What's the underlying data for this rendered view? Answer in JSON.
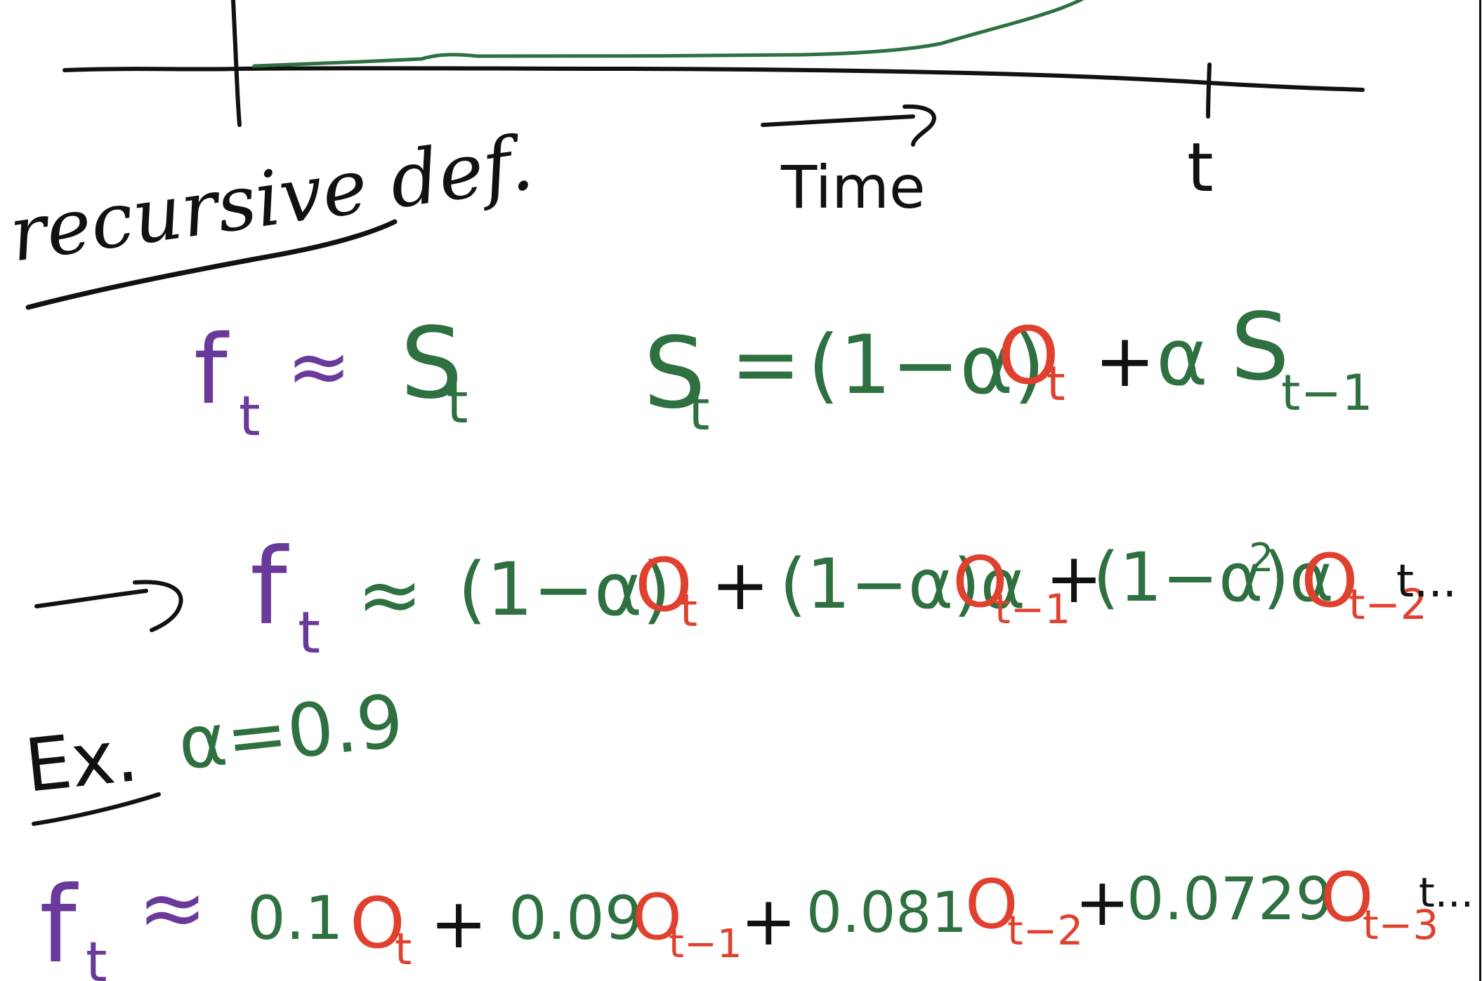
{
  "colors": {
    "black": "#111111",
    "green": "#2e7040",
    "purple": "#6a3a9a",
    "red": "#e0402e"
  },
  "graph": {
    "time_label": "Time",
    "t_label": "t"
  },
  "heading": {
    "text": "recursive def."
  },
  "line1": {
    "f": "f",
    "f_sub": "t",
    "approx": "≈",
    "s": "S",
    "s_sub": "t",
    "rhs_s": "S",
    "rhs_s_sub": "t",
    "eq": "=",
    "one_minus_alpha": "(1−α)",
    "o": "O",
    "o_sub": "t",
    "plus": "+",
    "alpha": "α",
    "s_prev": "S",
    "s_prev_sub": "t−1"
  },
  "line2": {
    "f": "f",
    "f_sub": "t",
    "approx": "≈",
    "term1_coef": "(1−α)",
    "term1_o": "O",
    "term1_sub": "t",
    "plus1": "+",
    "term2_coef": "(1−α)α",
    "term2_o": "O",
    "term2_sub": "t−1",
    "plus2": "+",
    "term3_coef": "(1−α)α",
    "term3_exp": "2",
    "term3_o": "O",
    "term3_sub": "t−2",
    "tail": "t..."
  },
  "example": {
    "label": "Ex.",
    "alpha_def": "α=0.9"
  },
  "line3": {
    "f": "f",
    "f_sub": "t",
    "approx": "≈",
    "c1": "0.1",
    "o1": "O",
    "o1_sub": "t",
    "plus1": "+",
    "c2": "0.09",
    "o2": "O",
    "o2_sub": "t−1",
    "plus2": "+",
    "c3": "0.081",
    "o3": "O",
    "o3_sub": "t−2",
    "plus3": "+",
    "c4": "0.0729",
    "o4": "O",
    "o4_sub": "t−3",
    "tail": "t..."
  }
}
